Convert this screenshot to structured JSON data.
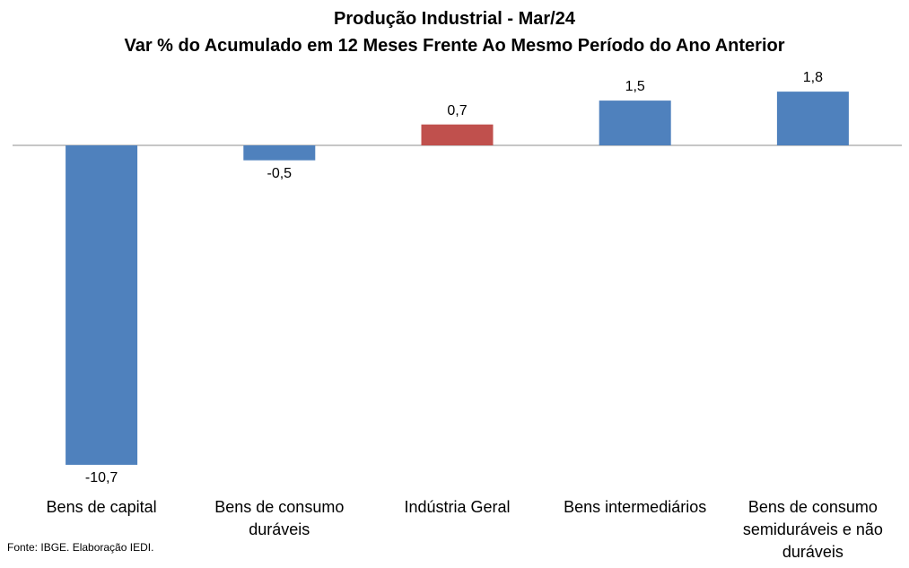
{
  "chart_data": {
    "type": "bar",
    "title": "Produção Industrial - Mar/24",
    "subtitle": "Var % do Acumulado em 12 Meses Frente Ao Mesmo Período do Ano Anterior",
    "categories": [
      "Bens de capital",
      "Bens de consumo duráveis",
      "Indústria Geral",
      "Bens intermediários",
      "Bens de consumo semiduráveis e não duráveis"
    ],
    "values": [
      -10.7,
      -0.5,
      0.7,
      1.5,
      1.8
    ],
    "value_labels": [
      "-10,7",
      "-0,5",
      "0,7",
      "1,5",
      "1,8"
    ],
    "colors": [
      "#4F81BD",
      "#4F81BD",
      "#C0504D",
      "#4F81BD",
      "#4F81BD"
    ],
    "ylim": [
      -10.7,
      1.8
    ],
    "grid": false,
    "legend": "none"
  },
  "source": "Fonte: IBGE. Elaboração IEDI."
}
